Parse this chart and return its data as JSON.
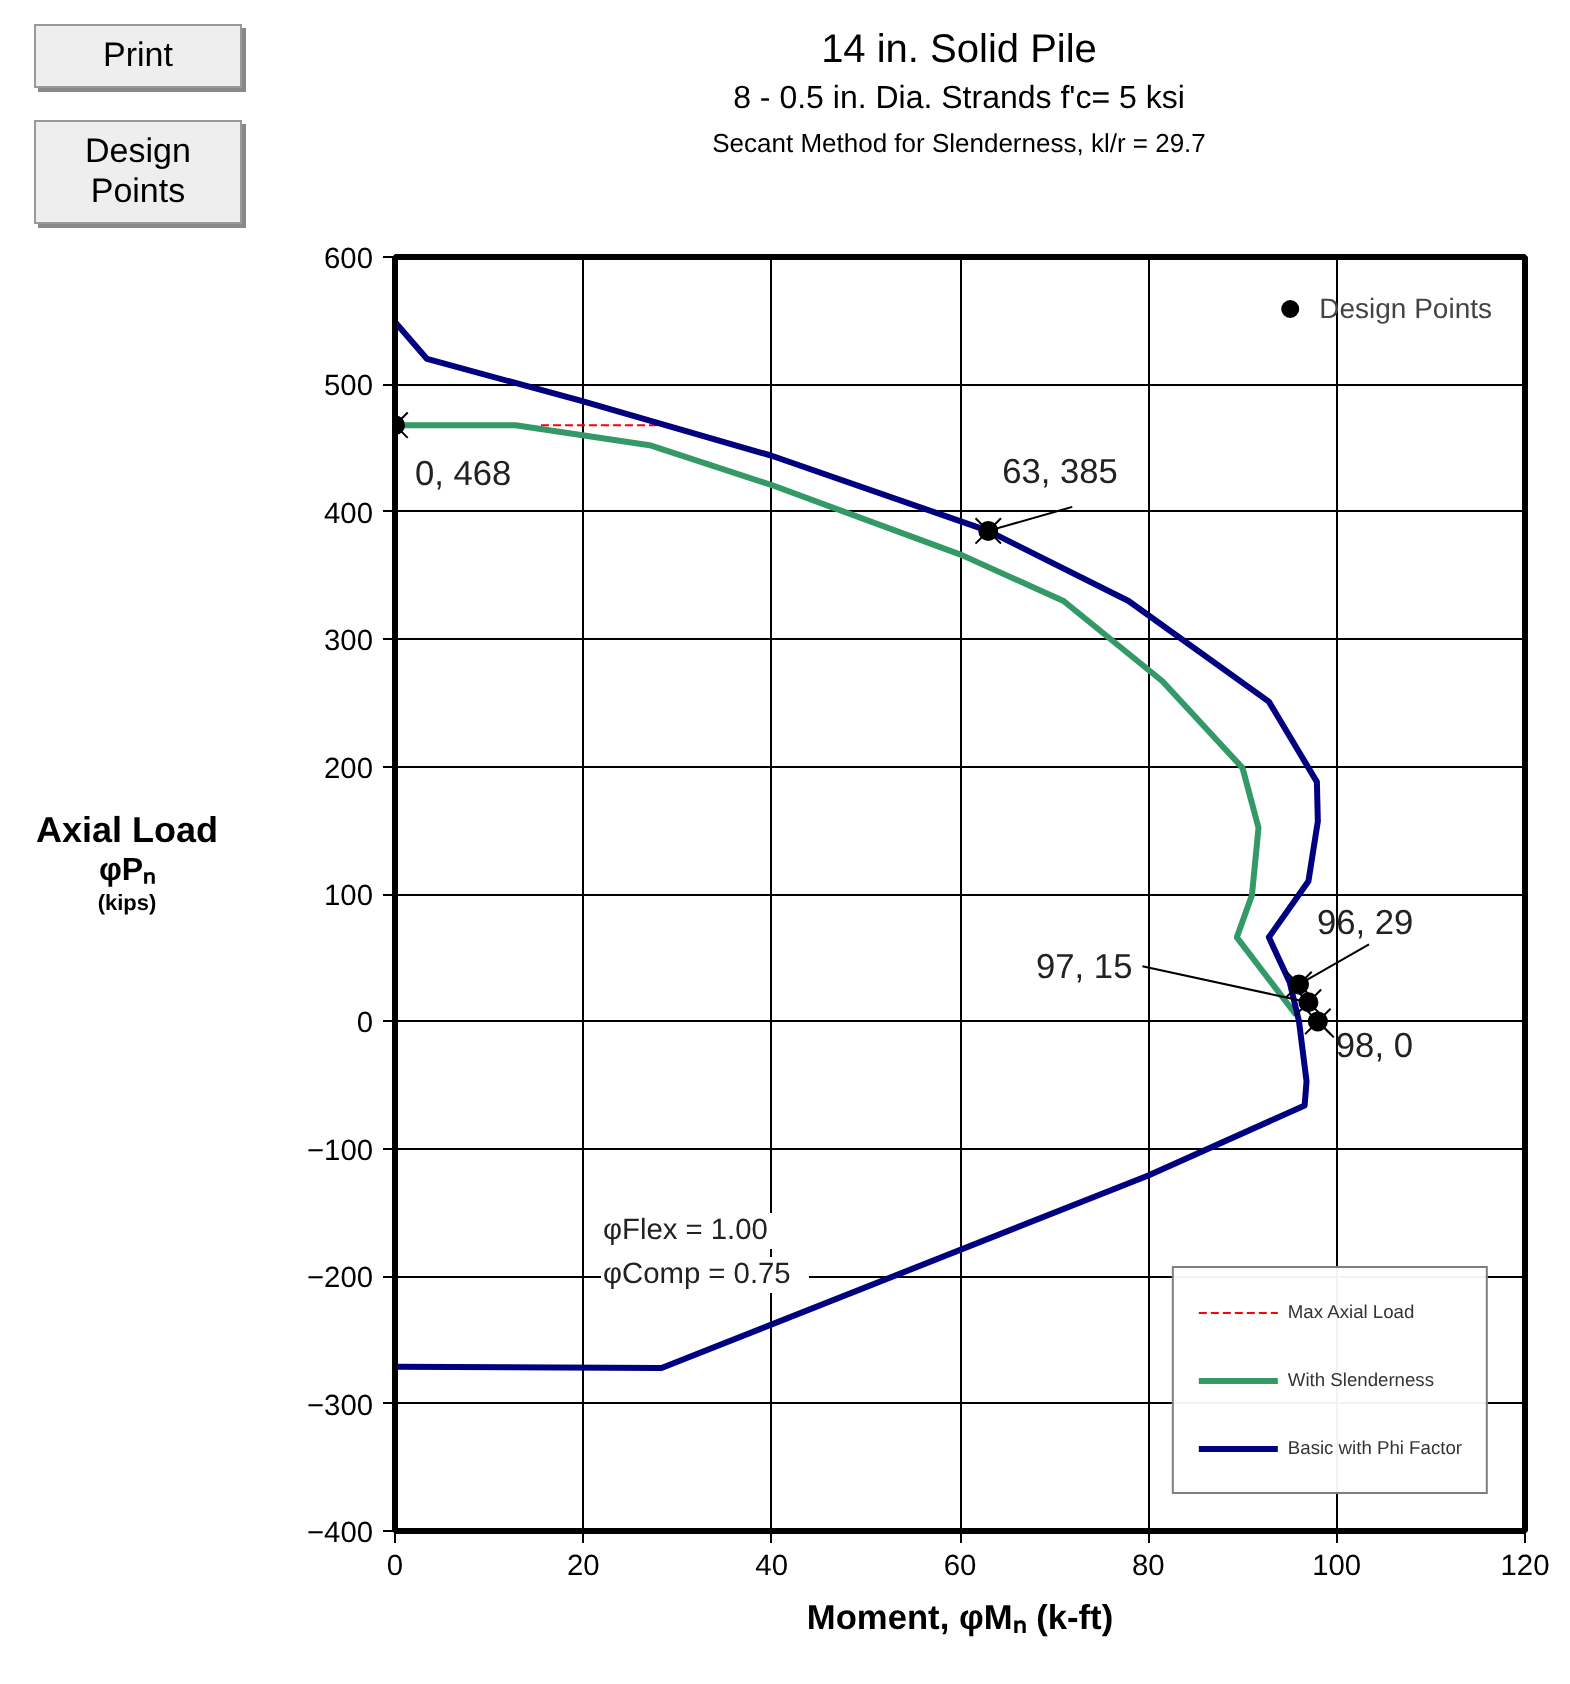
{
  "chart_data": {
    "type": "line",
    "title": "14 in. Solid  Pile",
    "subtitle": "8 - 0.5 in. Dia. Strands  f'c=  5 ksi\nSecant Method for Slenderness, kl/r = 29.7",
    "xlabel": "Moment, φMₙ (k-ft)",
    "ylabel": "Axial Load\nφPₙ\n(kips)",
    "xlim": [
      0,
      120
    ],
    "ylim": [
      -400,
      600
    ],
    "xticks": [
      0,
      20,
      40,
      60,
      80,
      100,
      120
    ],
    "yticks": [
      -400,
      -300,
      -200,
      -100,
      0,
      100,
      200,
      300,
      400,
      500,
      600
    ],
    "grid": true,
    "legend": "right",
    "series": [
      {
        "name": "Max Axial Load",
        "line_style": "dashed",
        "color": "#ff0000",
        "x": [
          15.5,
          27.9
        ],
        "values": [
          468,
          468
        ]
      },
      {
        "name": "With Slenderness",
        "color": "#339966",
        "x": [
          0,
          12.8,
          27.2,
          40,
          60.2,
          71,
          81.5,
          90,
          91.7,
          91,
          89.4,
          95.7
        ],
        "values": [
          468,
          468,
          452,
          421,
          366,
          330,
          267,
          199,
          152,
          99,
          66,
          5
        ]
      },
      {
        "name": "Basic with Phi Factor",
        "color": "#000080",
        "x": [
          0,
          3.4,
          19.8,
          40,
          63,
          77.9,
          92.8,
          97.9,
          98,
          97,
          92.8,
          95,
          96,
          96.8,
          96.6,
          80,
          28.3,
          0
        ],
        "values": [
          549,
          520,
          487,
          444,
          385,
          330,
          251,
          188,
          157,
          110,
          66,
          31,
          0,
          -47,
          -66,
          -121,
          -272,
          -271
        ]
      },
      {
        "name": "Design Points",
        "type": "scatter",
        "marker": "circle",
        "color": "#000000",
        "x": [
          0,
          63,
          96,
          97,
          98
        ],
        "values": [
          468,
          385,
          29,
          15,
          0
        ]
      }
    ],
    "annotations": [
      {
        "text": "0, 468",
        "x": 0,
        "y": 468
      },
      {
        "text": "63, 385",
        "x": 63,
        "y": 385
      },
      {
        "text": "96, 29",
        "x": 96,
        "y": 29
      },
      {
        "text": "97, 15",
        "x": 97,
        "y": 15
      },
      {
        "text": "98, 0",
        "x": 98,
        "y": 0
      },
      "φFlex  =   1.00",
      "φComp =   0.75",
      "Print",
      "Design\nPoints"
    ]
  }
}
